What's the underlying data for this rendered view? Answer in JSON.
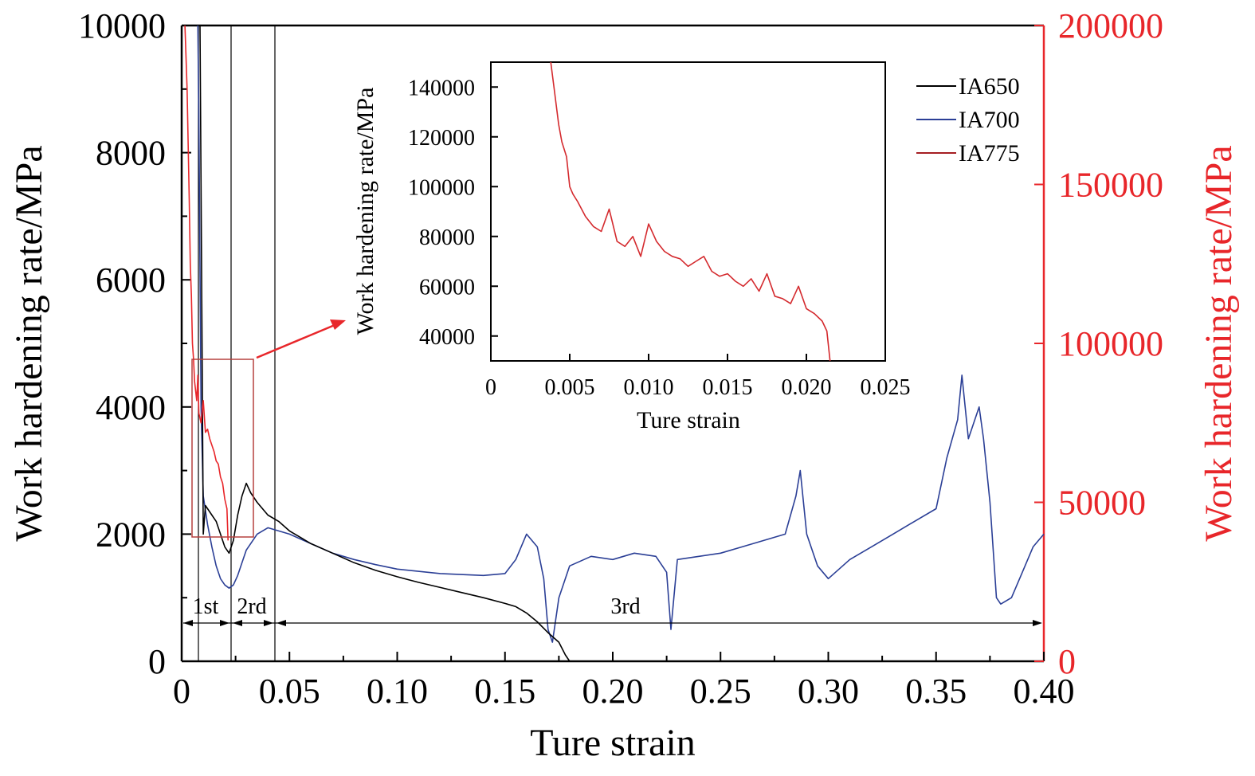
{
  "chart_data": [
    {
      "type": "line",
      "xlabel": "Ture strain",
      "ylabel": "Work hardening rate/MPa",
      "y2label": "Work hardening rate/MPa",
      "xlim": [
        0,
        0.4
      ],
      "ylim": [
        0,
        10000
      ],
      "y2lim": [
        0,
        200000
      ],
      "xticks": [
        "0",
        "0.05",
        "0.10",
        "0.15",
        "0.20",
        "0.25",
        "0.30",
        "0.35",
        "0.40"
      ],
      "yticks": [
        "0",
        "2000",
        "4000",
        "6000",
        "8000",
        "10000"
      ],
      "y2ticks": [
        "0",
        "50000",
        "100000",
        "150000",
        "200000"
      ],
      "grid": false,
      "legend_position": "top-right",
      "colors": {
        "IA650": "#000000",
        "IA700": "#2b3f96",
        "IA775": "#e8262a",
        "right_axis": "#e8262a"
      },
      "series": [
        {
          "name": "IA650",
          "axis": "left",
          "x": [
            0.0085,
            0.009,
            0.01,
            0.011,
            0.012,
            0.014,
            0.016,
            0.018,
            0.02,
            0.022,
            0.024,
            0.026,
            0.028,
            0.03,
            0.032,
            0.035,
            0.04,
            0.045,
            0.05,
            0.06,
            0.07,
            0.08,
            0.09,
            0.1,
            0.11,
            0.12,
            0.13,
            0.14,
            0.15,
            0.155,
            0.16,
            0.165,
            0.17,
            0.175,
            0.178,
            0.18
          ],
          "values": [
            10000,
            7500,
            2000,
            2450,
            2400,
            2300,
            2200,
            2000,
            1800,
            1700,
            1900,
            2300,
            2600,
            2800,
            2650,
            2500,
            2300,
            2200,
            2050,
            1850,
            1700,
            1550,
            1430,
            1330,
            1240,
            1160,
            1080,
            1000,
            910,
            860,
            760,
            620,
            450,
            300,
            100,
            0
          ]
        },
        {
          "name": "IA700",
          "axis": "left",
          "x": [
            0.0075,
            0.008,
            0.009,
            0.01,
            0.012,
            0.014,
            0.016,
            0.018,
            0.02,
            0.022,
            0.024,
            0.026,
            0.028,
            0.03,
            0.035,
            0.04,
            0.05,
            0.06,
            0.07,
            0.08,
            0.09,
            0.1,
            0.12,
            0.14,
            0.15,
            0.155,
            0.16,
            0.165,
            0.168,
            0.17,
            0.172,
            0.175,
            0.18,
            0.19,
            0.2,
            0.21,
            0.22,
            0.225,
            0.227,
            0.23,
            0.24,
            0.25,
            0.26,
            0.27,
            0.28,
            0.285,
            0.287,
            0.29,
            0.295,
            0.3,
            0.305,
            0.31,
            0.32,
            0.33,
            0.34,
            0.35,
            0.355,
            0.36,
            0.362,
            0.365,
            0.37,
            0.372,
            0.375,
            0.378,
            0.38,
            0.385,
            0.39,
            0.395,
            0.4
          ],
          "values": [
            10000,
            8500,
            4000,
            2600,
            2150,
            1800,
            1500,
            1300,
            1200,
            1150,
            1200,
            1350,
            1550,
            1750,
            2000,
            2100,
            2000,
            1850,
            1700,
            1600,
            1520,
            1450,
            1380,
            1350,
            1380,
            1600,
            2000,
            1800,
            1300,
            500,
            300,
            1000,
            1500,
            1650,
            1600,
            1700,
            1650,
            1400,
            500,
            1600,
            1650,
            1700,
            1800,
            1900,
            2000,
            2600,
            3000,
            2000,
            1500,
            1300,
            1450,
            1600,
            1800,
            2000,
            2200,
            2400,
            3200,
            3800,
            4500,
            3500,
            4000,
            3500,
            2500,
            1000,
            900,
            1000,
            1400,
            1800,
            2000
          ]
        },
        {
          "name": "IA775",
          "axis": "right",
          "x": [
            0.0015,
            0.0025,
            0.0035,
            0.004,
            0.0045,
            0.005,
            0.0055,
            0.006,
            0.007,
            0.0075,
            0.008,
            0.009,
            0.01,
            0.011,
            0.012,
            0.013,
            0.014,
            0.015,
            0.016,
            0.017,
            0.018,
            0.019,
            0.02,
            0.021,
            0.0215
          ],
          "values": [
            200000,
            180000,
            145000,
            125000,
            115000,
            100000,
            95000,
            88000,
            82000,
            90000,
            78000,
            75000,
            82000,
            72000,
            73000,
            70000,
            68000,
            66000,
            63000,
            62000,
            58000,
            56000,
            51000,
            48000,
            38000
          ]
        }
      ],
      "stages": [
        {
          "label": "1st"
        },
        {
          "label": "2rd"
        },
        {
          "label": "3rd"
        }
      ]
    },
    {
      "type": "line",
      "xlabel": "Ture strain",
      "ylabel": "Work hardening rate/MPa",
      "xlim": [
        0,
        0.025
      ],
      "ylim": [
        30000,
        150000
      ],
      "xticks": [
        "0",
        "0.005",
        "0.010",
        "0.015",
        "0.020",
        "0.025"
      ],
      "yticks": [
        "40000",
        "60000",
        "80000",
        "100000",
        "120000",
        "140000"
      ],
      "grid": false,
      "series": [
        {
          "name": "IA775",
          "x": [
            0.0038,
            0.004,
            0.0043,
            0.0045,
            0.0048,
            0.005,
            0.0052,
            0.0055,
            0.006,
            0.0065,
            0.007,
            0.0075,
            0.008,
            0.0085,
            0.009,
            0.0095,
            0.01,
            0.0105,
            0.011,
            0.0115,
            0.012,
            0.0125,
            0.013,
            0.0135,
            0.014,
            0.0145,
            0.015,
            0.0155,
            0.016,
            0.0165,
            0.017,
            0.0175,
            0.018,
            0.0185,
            0.019,
            0.0195,
            0.02,
            0.0205,
            0.021,
            0.0213,
            0.0215
          ],
          "values": [
            150000,
            140000,
            125000,
            118000,
            112000,
            100000,
            97000,
            94000,
            88000,
            84000,
            82000,
            91000,
            78000,
            76000,
            80000,
            72000,
            85000,
            78000,
            74000,
            72000,
            71000,
            68000,
            70000,
            72000,
            66000,
            64000,
            65000,
            62000,
            60000,
            63000,
            58000,
            65000,
            56000,
            55000,
            53000,
            60000,
            51000,
            49000,
            46000,
            42000,
            30000
          ]
        }
      ]
    }
  ],
  "annotations": {
    "legend": [
      "IA650",
      "IA700",
      "IA775"
    ]
  }
}
